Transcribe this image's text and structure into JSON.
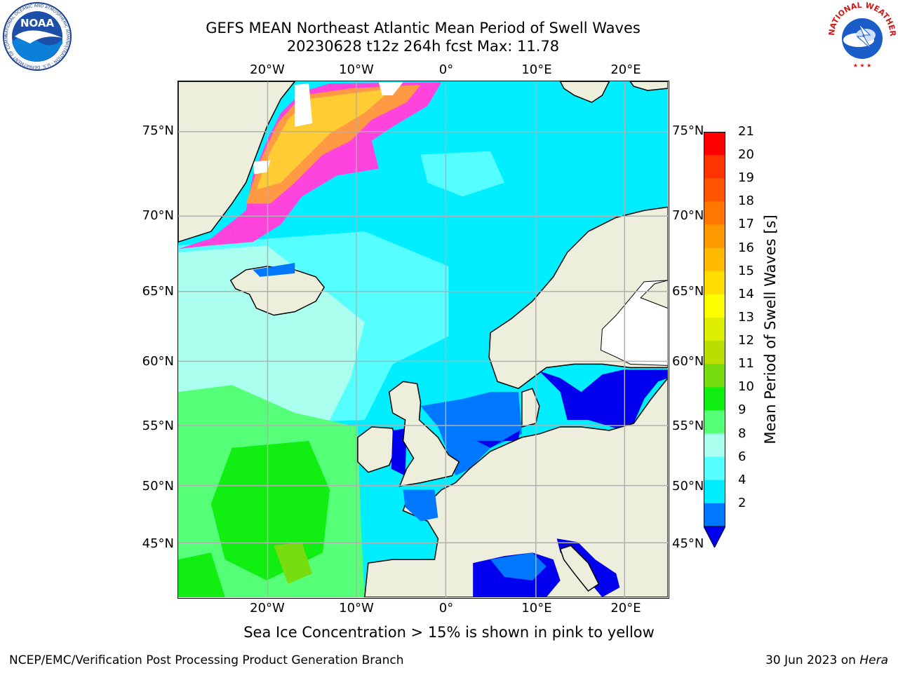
{
  "title": {
    "line1": "GEFS MEAN Northeast Atlantic Mean Period of Swell Waves",
    "line2": "20230628 t12z 264h fcst   Max: 11.78"
  },
  "map": {
    "region": "Northeast Atlantic",
    "lon_labels": [
      "20°W",
      "10°W",
      "0°",
      "10°E",
      "20°E"
    ],
    "lat_labels": [
      "75°N",
      "70°N",
      "65°N",
      "60°N",
      "55°N",
      "50°N",
      "45°N"
    ],
    "colors": {
      "land": "#eeeedc",
      "ocean_low": "#00eeff",
      "grid": "#b0b0b0",
      "coast": "#000000"
    }
  },
  "colorbar": {
    "title": "Mean Period of Swell Waves [s]",
    "ticks": [
      "21",
      "20",
      "19",
      "18",
      "17",
      "16",
      "15",
      "14",
      "13",
      "12",
      "11",
      "10",
      "9",
      "8",
      "6",
      "4",
      "2"
    ],
    "colors": [
      "#ff0000",
      "#ff3300",
      "#ff5500",
      "#ff7700",
      "#ff9900",
      "#ffbb00",
      "#ffdd00",
      "#ffff00",
      "#ddee00",
      "#bbdd00",
      "#77dd11",
      "#11ee11",
      "#55ff77",
      "#aaffee",
      "#55ffff",
      "#00eeff",
      "#0077ff"
    ],
    "extend_color": "#0000ee"
  },
  "caption": "Sea Ice Concentration > 15% is shown in pink to yellow",
  "footer": {
    "left": "NCEP/EMC/Verification Post Processing Product Generation Branch",
    "right_date": "30 Jun 2023 on ",
    "right_host": "Hera"
  },
  "logos": {
    "noaa": {
      "text": "NOAA",
      "ring_text": "NATIONAL OCEANIC AND ATMOSPHERIC ADMINISTRATION · U.S. DEPARTMENT OF COMMERCE"
    },
    "nws": {
      "ring_text": "NATIONAL WEATHER SERVICE"
    }
  }
}
